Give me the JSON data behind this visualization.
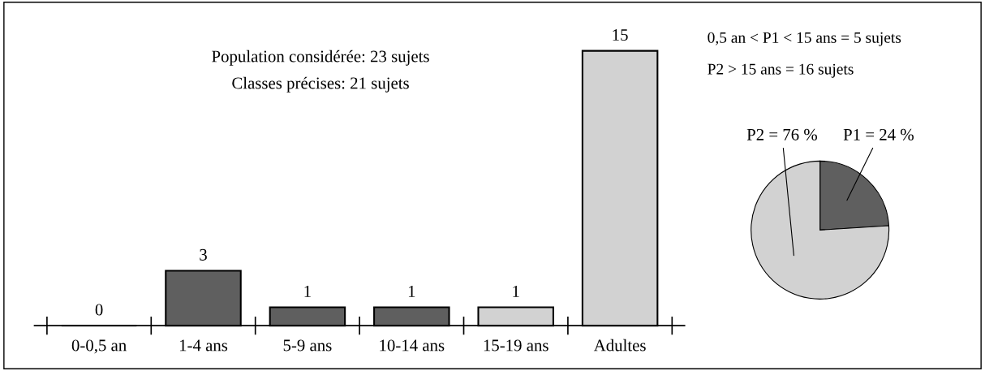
{
  "chart_data": [
    {
      "type": "bar",
      "categories": [
        "0-0,5 an",
        "1-4 ans",
        "5-9 ans",
        "10-14 ans",
        "15-19 ans",
        "Adultes"
      ],
      "values": [
        0,
        3,
        1,
        1,
        1,
        15
      ],
      "colors": [
        "#5f5f5f",
        "#5f5f5f",
        "#5f5f5f",
        "#5f5f5f",
        "#d2d2d2",
        "#d2d2d2"
      ],
      "data_labels": true,
      "annotations": [
        "Population considérée: 23 sujets",
        "Classes précises: 21 sujets"
      ]
    },
    {
      "type": "pie",
      "categories": [
        "P1 = 24 %",
        "P2 = 76 %"
      ],
      "values": [
        24,
        76
      ],
      "colors": [
        "#5f5f5f",
        "#d2d2d2"
      ],
      "annotations": [
        "0,5 an < P1 < 15 ans = 5 sujets",
        "P2 > 15 ans = 16 sujets"
      ]
    }
  ]
}
